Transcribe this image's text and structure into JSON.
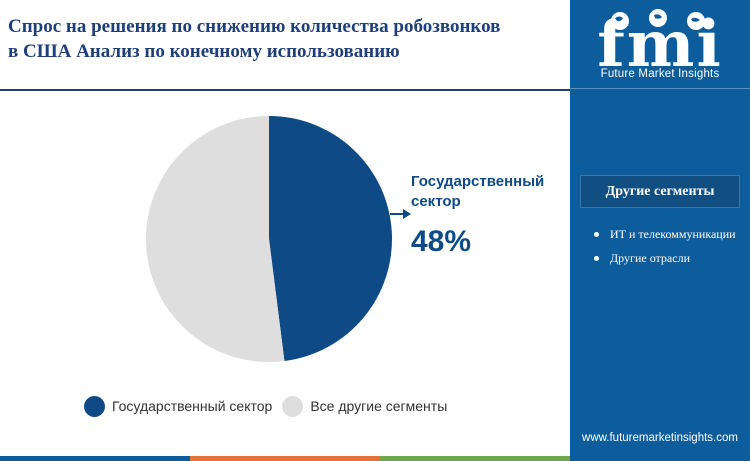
{
  "header": {
    "title_line1": "Спрос на решения по снижению количества робозвонков",
    "title_line2": "в США Анализ по конечному использованию"
  },
  "brand": {
    "logo_letters": "fmi",
    "logo_text": "Future Market Insights",
    "website": "www.futuremarketinsights.com"
  },
  "sidebar": {
    "segments_title": "Другие сегменты",
    "segments": [
      {
        "label": "ИТ и телекоммуникации"
      },
      {
        "label": "Другие отрасли"
      }
    ]
  },
  "callout": {
    "label": "Государственный сектор",
    "value": "48%"
  },
  "chart_data": {
    "type": "pie",
    "slices": [
      {
        "name": "Государственный сектор",
        "value": 48,
        "color": "#0d4a86"
      },
      {
        "name": "Все другие сегменты",
        "value": 52,
        "color": "#dedede"
      }
    ],
    "legend_position": "bottom"
  },
  "colors": {
    "primary": "#0d4a86",
    "sidebar": "#0d5d9c",
    "other": "#dedede",
    "footer": [
      "#0d5d9c",
      "#e2733a",
      "#6fa84c"
    ]
  }
}
